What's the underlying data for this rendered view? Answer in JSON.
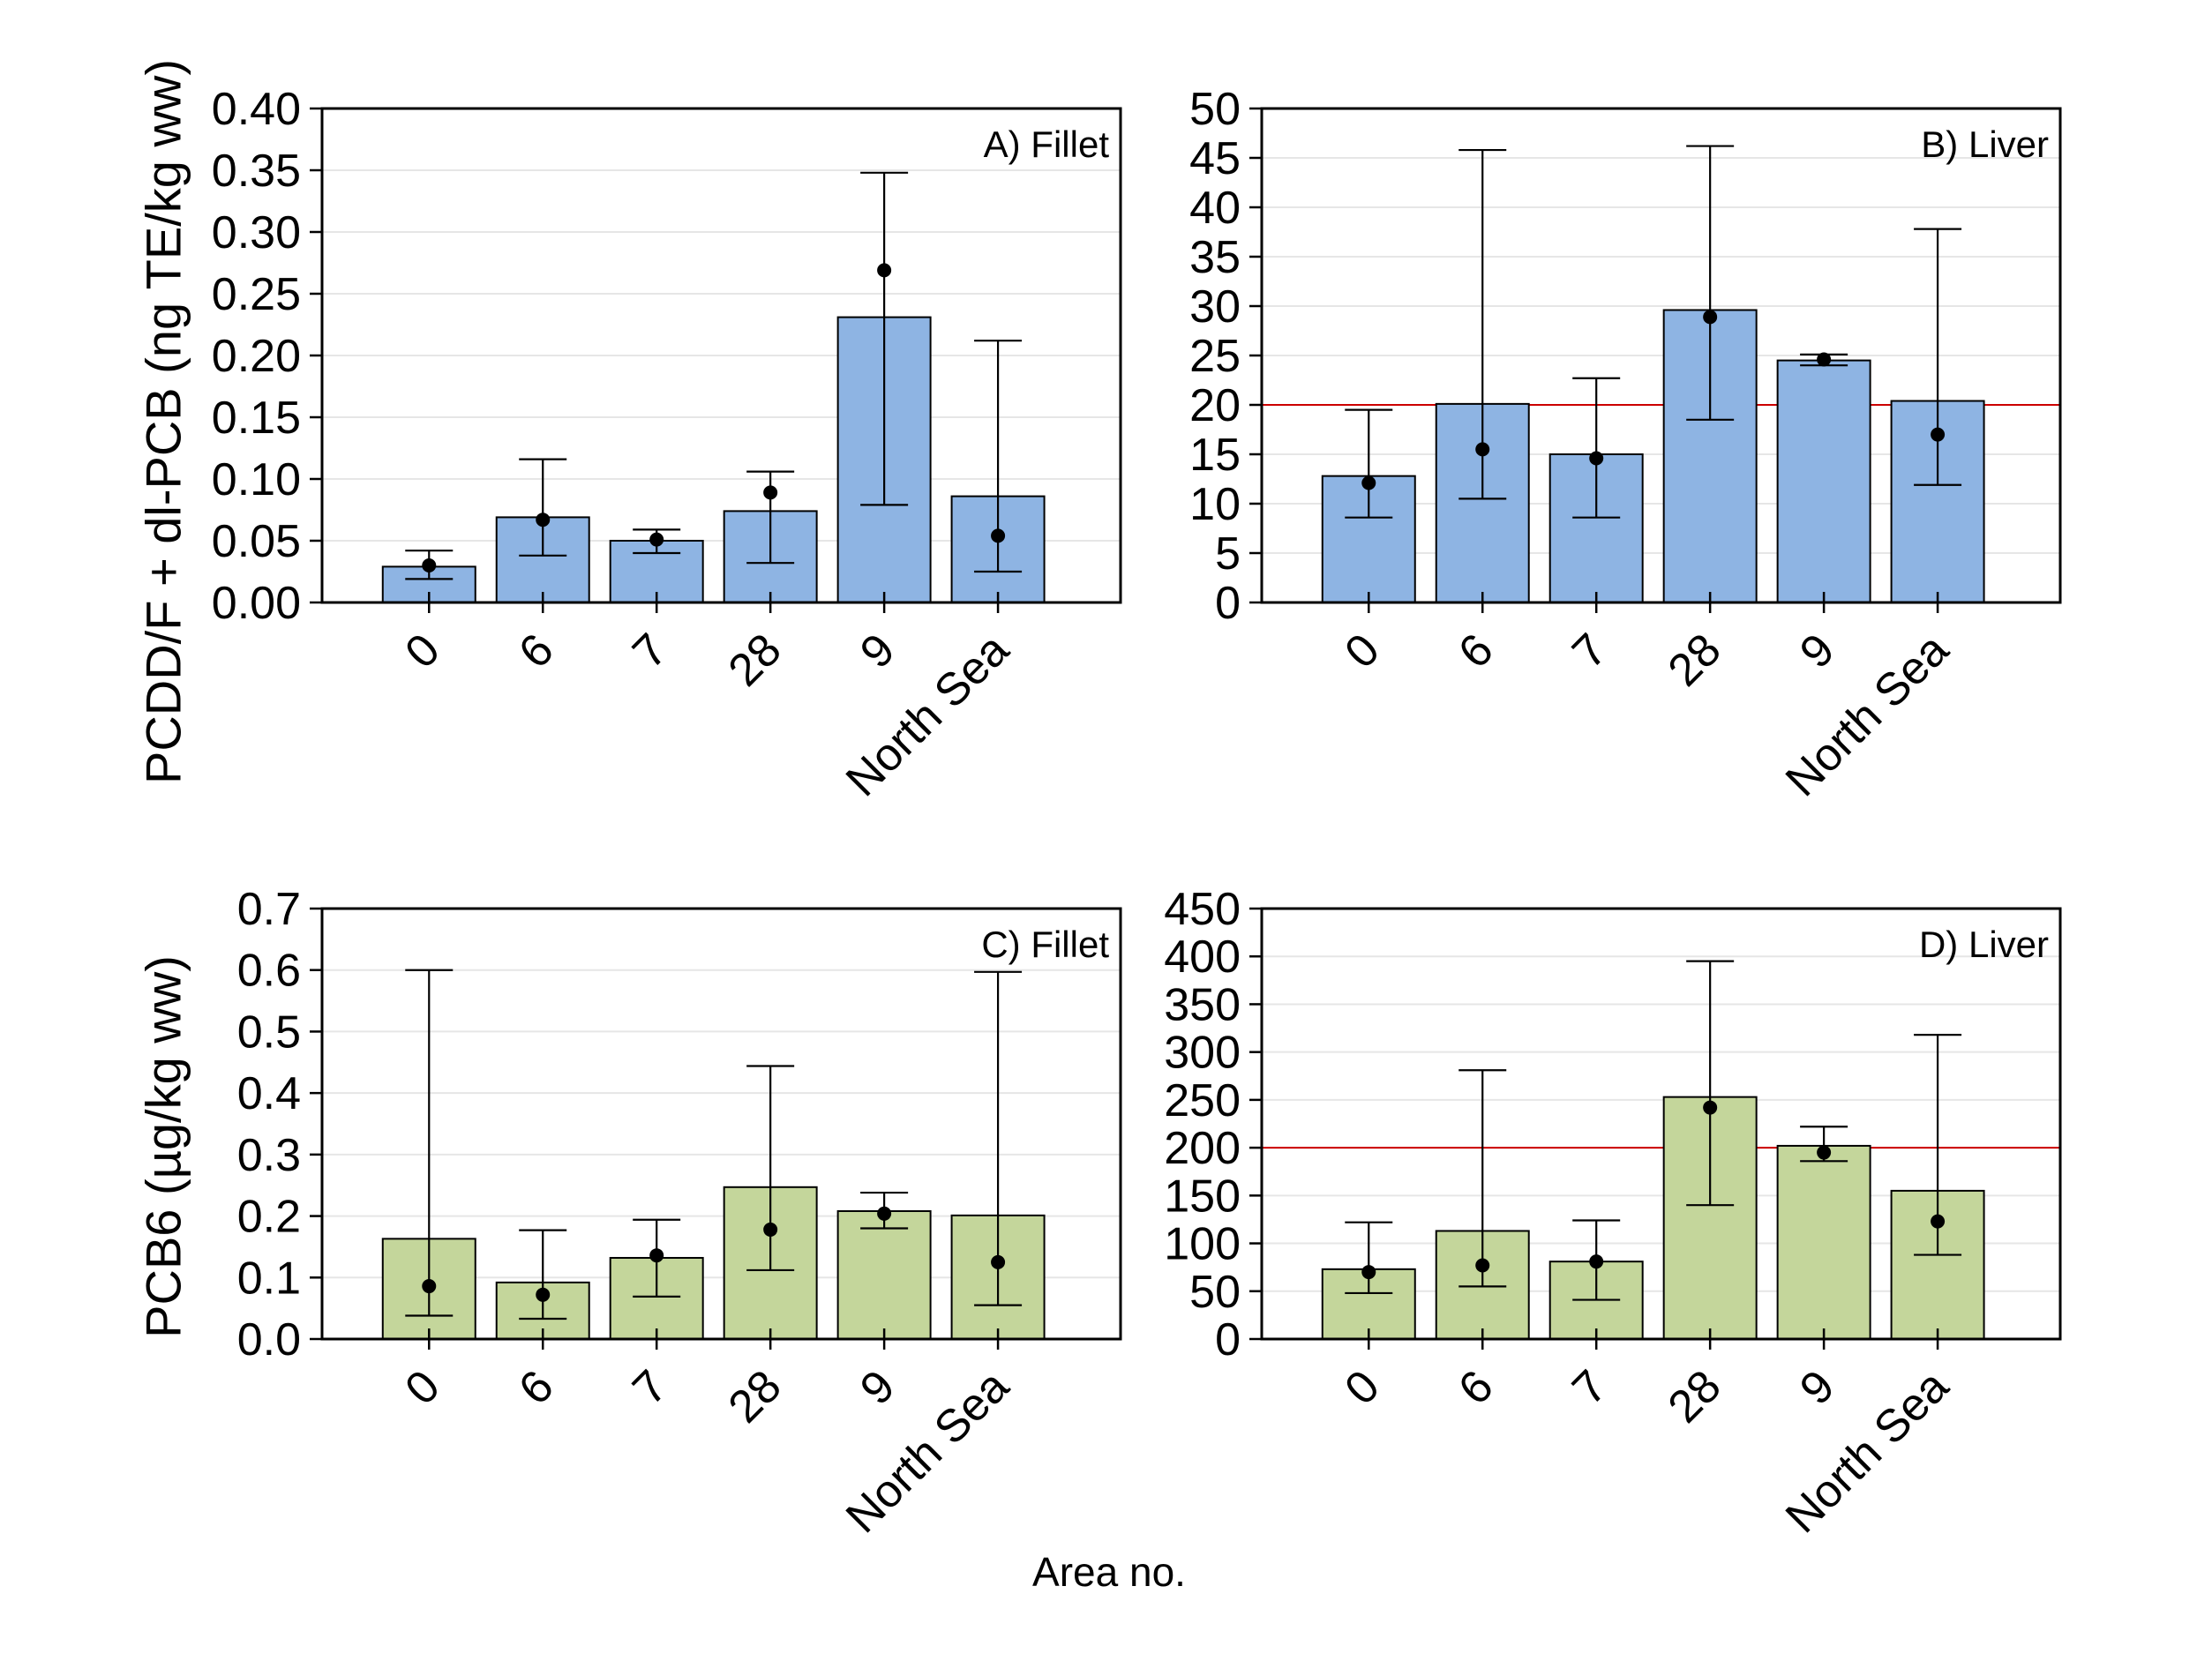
{
  "figure": {
    "xlabel": "Area no.",
    "background": "#FFFFFF",
    "text_color": "#000000",
    "grid_color": "#E6E6E6",
    "axis_color": "#000000",
    "error_bar_color": "#000000",
    "dot_color": "#000000"
  },
  "chart_data": [
    {
      "id": "A",
      "type": "bar",
      "label": "A) Fillet",
      "ylabel": "PCDD/F + dl-PCB (ng TE/kg ww)",
      "ylim": [
        0,
        0.4
      ],
      "ytick_step": 0.05,
      "ytick_decimals": 2,
      "grid": true,
      "legend": "none",
      "refline": null,
      "bar_color": "#8EB4E3",
      "bar_edge_color": "#000000",
      "categories": [
        "0",
        "6",
        "7",
        "28",
        "9",
        "North Sea"
      ],
      "series": [
        {
          "name": "bar",
          "values": [
            0.029,
            0.069,
            0.05,
            0.074,
            0.231,
            0.086
          ]
        },
        {
          "name": "dot",
          "values": [
            0.03,
            0.067,
            0.051,
            0.089,
            0.269,
            0.054
          ]
        },
        {
          "name": "err_low",
          "values": [
            0.019,
            0.038,
            0.04,
            0.032,
            0.079,
            0.025
          ]
        },
        {
          "name": "err_high",
          "values": [
            0.042,
            0.116,
            0.059,
            0.106,
            0.348,
            0.212
          ]
        }
      ]
    },
    {
      "id": "B",
      "type": "bar",
      "label": "B) Liver",
      "ylabel": "",
      "ylim": [
        0,
        50
      ],
      "ytick_step": 5,
      "ytick_decimals": 0,
      "grid": true,
      "legend": "none",
      "refline": {
        "value": 20,
        "color": "#CC0000"
      },
      "bar_color": "#8EB4E3",
      "bar_edge_color": "#000000",
      "categories": [
        "0",
        "6",
        "7",
        "28",
        "9",
        "North Sea"
      ],
      "series": [
        {
          "name": "bar",
          "values": [
            12.8,
            20.1,
            15.0,
            29.6,
            24.5,
            20.4
          ]
        },
        {
          "name": "dot",
          "values": [
            12.1,
            15.5,
            14.6,
            28.9,
            24.6,
            17.0
          ]
        },
        {
          "name": "err_low",
          "values": [
            8.6,
            10.5,
            8.6,
            18.5,
            24.0,
            11.9
          ]
        },
        {
          "name": "err_high",
          "values": [
            19.5,
            45.8,
            22.7,
            46.2,
            25.1,
            37.8
          ]
        }
      ]
    },
    {
      "id": "C",
      "type": "bar",
      "label": "C) Fillet",
      "ylabel": "PCB6 (µg/kg ww)",
      "ylim": [
        0,
        0.7
      ],
      "ytick_step": 0.1,
      "ytick_decimals": 1,
      "grid": true,
      "legend": "none",
      "refline": null,
      "bar_color": "#C4D69B",
      "bar_edge_color": "#000000",
      "categories": [
        "0",
        "6",
        "7",
        "28",
        "9",
        "North Sea"
      ],
      "series": [
        {
          "name": "bar",
          "values": [
            0.163,
            0.092,
            0.132,
            0.247,
            0.208,
            0.201
          ]
        },
        {
          "name": "dot",
          "values": [
            0.086,
            0.072,
            0.136,
            0.178,
            0.204,
            0.125
          ]
        },
        {
          "name": "err_low",
          "values": [
            0.038,
            0.033,
            0.069,
            0.112,
            0.18,
            0.055
          ]
        },
        {
          "name": "err_high",
          "values": [
            0.6,
            0.177,
            0.194,
            0.444,
            0.238,
            0.597
          ]
        }
      ]
    },
    {
      "id": "D",
      "type": "bar",
      "label": "D) Liver",
      "ylabel": "",
      "ylim": [
        0,
        450
      ],
      "ytick_step": 50,
      "ytick_decimals": 0,
      "grid": true,
      "legend": "none",
      "refline": {
        "value": 200,
        "color": "#CC0000"
      },
      "bar_color": "#C4D69B",
      "bar_edge_color": "#000000",
      "categories": [
        "0",
        "6",
        "7",
        "28",
        "9",
        "North Sea"
      ],
      "series": [
        {
          "name": "bar",
          "values": [
            73,
            113,
            81,
            253,
            202,
            155
          ]
        },
        {
          "name": "dot",
          "values": [
            70,
            77,
            81,
            242,
            195,
            123
          ]
        },
        {
          "name": "err_low",
          "values": [
            48,
            55,
            41,
            140,
            186,
            88
          ]
        },
        {
          "name": "err_high",
          "values": [
            122,
            281,
            124,
            395,
            222,
            318
          ]
        }
      ]
    }
  ]
}
